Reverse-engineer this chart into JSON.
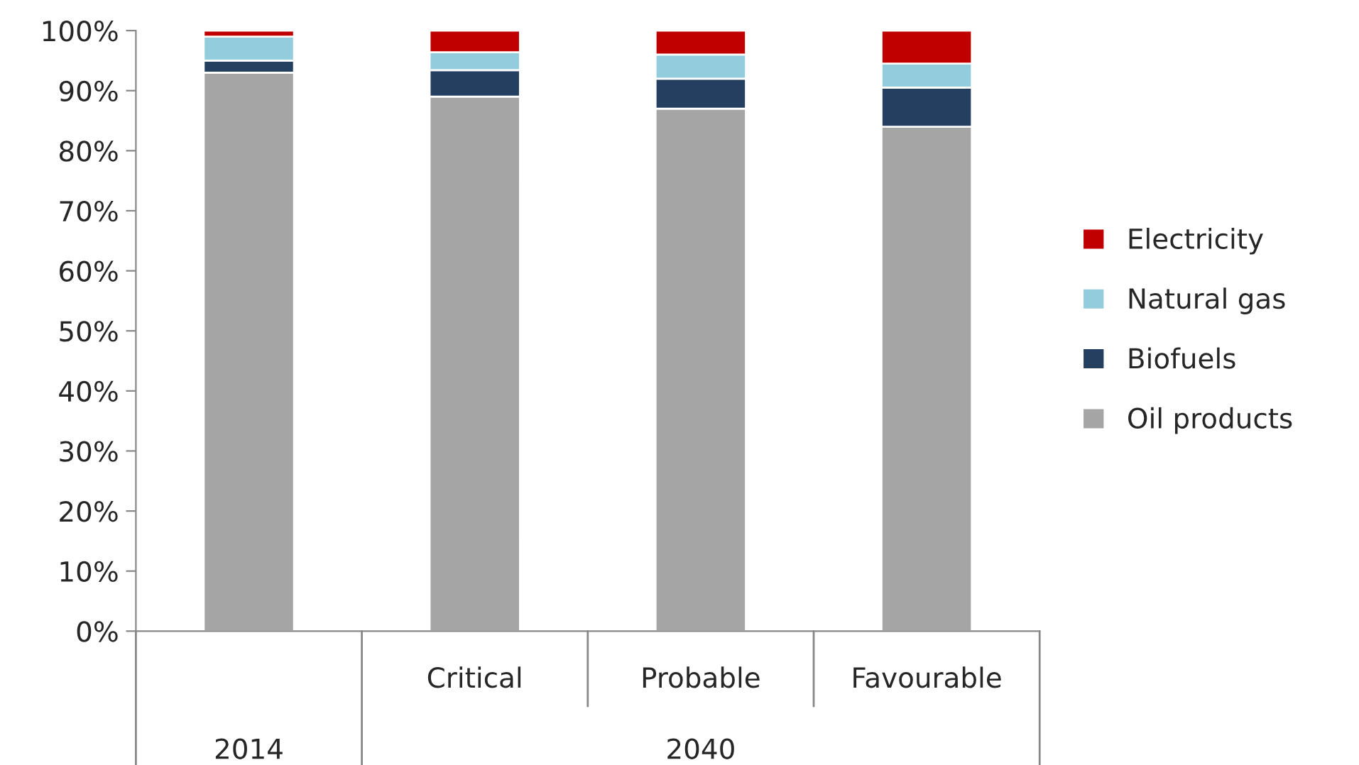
{
  "chart_data": {
    "type": "bar",
    "stacked": true,
    "categories": [
      null,
      "Critical",
      "Probable",
      "Favourable"
    ],
    "series": [
      {
        "name": "Oil products",
        "color": "#a5a5a5",
        "values": [
          93,
          89,
          87,
          84
        ]
      },
      {
        "name": "Biofuels",
        "color": "#243f60",
        "values": [
          2,
          4.4,
          5,
          6.5
        ]
      },
      {
        "name": "Natural gas",
        "color": "#93cddd",
        "values": [
          4,
          3,
          4,
          4
        ]
      },
      {
        "name": "Electricity",
        "color": "#c00000",
        "values": [
          1,
          3.6,
          4,
          5.5
        ]
      }
    ],
    "ylim": [
      0,
      100
    ],
    "yticks": [
      {
        "value": 0,
        "label": "0%"
      },
      {
        "value": 10,
        "label": "10%"
      },
      {
        "value": 20,
        "label": "20%"
      },
      {
        "value": 30,
        "label": "30%"
      },
      {
        "value": 40,
        "label": "40%"
      },
      {
        "value": 50,
        "label": "50%"
      },
      {
        "value": 60,
        "label": "60%"
      },
      {
        "value": 70,
        "label": "70%"
      },
      {
        "value": 80,
        "label": "80%"
      },
      {
        "value": 90,
        "label": "90%"
      },
      {
        "value": 100,
        "label": "100%"
      }
    ],
    "annotations": [
      "2014",
      "2040"
    ],
    "legend": "right",
    "grid": false
  }
}
